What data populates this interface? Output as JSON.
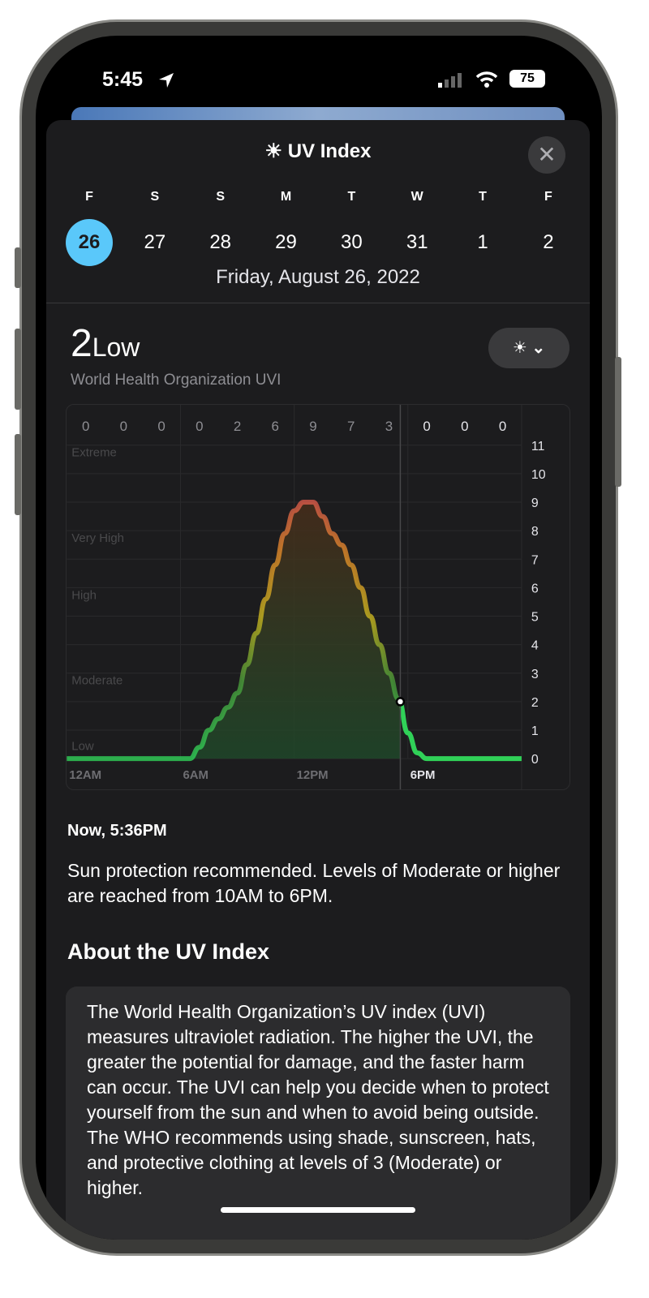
{
  "status": {
    "time": "5:45",
    "battery": "75"
  },
  "header": {
    "title": "UV Index",
    "close": "✕",
    "icon": "sun-icon"
  },
  "days": [
    {
      "l": "F",
      "n": "26"
    },
    {
      "l": "S",
      "n": "27"
    },
    {
      "l": "S",
      "n": "28"
    },
    {
      "l": "M",
      "n": "29"
    },
    {
      "l": "T",
      "n": "30"
    },
    {
      "l": "W",
      "n": "31"
    },
    {
      "l": "T",
      "n": "1"
    },
    {
      "l": "F",
      "n": "2"
    }
  ],
  "selected_day": "26",
  "full_date": "Friday, August 26, 2022",
  "current": {
    "value": "2",
    "label": "Low",
    "source": "World Health Organization UVI"
  },
  "picker": {
    "icon": "☀",
    "chevron": "⌄"
  },
  "chart_data": {
    "type": "area",
    "hourly_max": [
      "0",
      "0",
      "0",
      "0",
      "2",
      "6",
      "9",
      "7",
      "3",
      "0",
      "0",
      "0"
    ],
    "category_labels": [
      "Extreme",
      "Very High",
      "High",
      "Moderate",
      "Low"
    ],
    "x_ticks": [
      "12AM",
      "6AM",
      "12PM",
      "6PM"
    ],
    "y_ticks": [
      "0",
      "1",
      "2",
      "3",
      "4",
      "5",
      "6",
      "7",
      "8",
      "9",
      "10",
      "11"
    ],
    "ylim": [
      0,
      11
    ],
    "xlim_hours": [
      0,
      24
    ],
    "now_hour": 17.6,
    "now_value": 2,
    "points": [
      [
        0,
        0
      ],
      [
        6.5,
        0
      ],
      [
        7,
        0.4
      ],
      [
        7.5,
        1.0
      ],
      [
        8,
        1.4
      ],
      [
        8.5,
        1.8
      ],
      [
        9,
        2.3
      ],
      [
        9.5,
        3.3
      ],
      [
        10,
        4.4
      ],
      [
        10.5,
        5.6
      ],
      [
        11,
        6.8
      ],
      [
        11.5,
        7.9
      ],
      [
        12,
        8.7
      ],
      [
        12.5,
        9.0
      ],
      [
        13,
        9.0
      ],
      [
        13.5,
        8.5
      ],
      [
        14,
        7.9
      ],
      [
        14.5,
        7.5
      ],
      [
        15,
        6.8
      ],
      [
        15.5,
        6.0
      ],
      [
        16,
        5.0
      ],
      [
        16.5,
        4.0
      ],
      [
        17,
        3.0
      ],
      [
        17.5,
        2.1
      ],
      [
        18,
        0.9
      ],
      [
        18.5,
        0.2
      ],
      [
        19,
        0
      ],
      [
        24,
        0
      ]
    ],
    "colors": {
      "low": "#30d158",
      "moderate": "#c9b51f",
      "high": "#e08a2a",
      "very_high": "#d85a4a"
    }
  },
  "now_label": "Now, 5:36PM",
  "message": "Sun protection recommended. Levels of Moderate or higher are reached from 10AM to 6PM.",
  "about": {
    "title": "About the UV Index",
    "text": "The World Health Organization’s UV index (UVI) measures ultraviolet radiation. The higher the UVI, the greater the potential for damage, and the faster harm can occur. The UVI can help you decide when to protect yourself from the sun and when to avoid being outside. The WHO recommends using shade, sunscreen, hats, and protective clothing at levels of 3 (Moderate) or higher."
  }
}
